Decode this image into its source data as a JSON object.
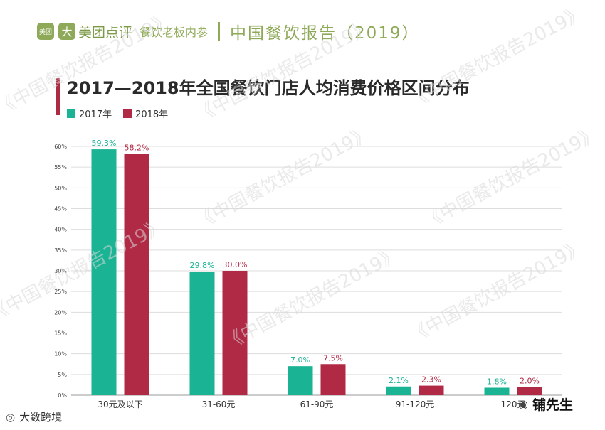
{
  "header": {
    "logo_mark": "美团",
    "logo_mark2": "大",
    "brand": "美团点评",
    "partner": "餐饮老板内参",
    "report_title": "中国餐饮报告（2019）"
  },
  "watermark_text": "《中国餐饮报告2019》",
  "footer": {
    "left_icon": "weibo-icon",
    "left_text": "大数跨境",
    "right_icon": "wechat-icon",
    "right_text": "铺先生"
  },
  "colors": {
    "series_2017": "#1ab394",
    "series_2018": "#b02a46",
    "header_green": "#8ea957"
  },
  "chart_data": {
    "type": "bar",
    "title": "2017—2018年全国餐饮门店人均消费价格区间分布",
    "categories": [
      "30元及以下",
      "31-60元",
      "61-90元",
      "91-120元",
      "120元"
    ],
    "series": [
      {
        "name": "2017年",
        "values": [
          59.3,
          29.8,
          7.0,
          2.1,
          1.8
        ],
        "labels": [
          "59.3%",
          "29.8%",
          "7.0%",
          "2.1%",
          "1.8%"
        ],
        "color": "#1ab394"
      },
      {
        "name": "2018年",
        "values": [
          58.2,
          30.0,
          7.5,
          2.3,
          2.0
        ],
        "labels": [
          "58.2%",
          "30.0%",
          "7.5%",
          "2.3%",
          "2.0%"
        ],
        "color": "#b02a46"
      }
    ],
    "yticks": [
      "0%",
      "5%",
      "10%",
      "15%",
      "20%",
      "25%",
      "30%",
      "35%",
      "40%",
      "45%",
      "50%",
      "55%",
      "60%"
    ],
    "ylim": [
      0,
      60
    ],
    "grid": true,
    "legend": "top-left"
  }
}
